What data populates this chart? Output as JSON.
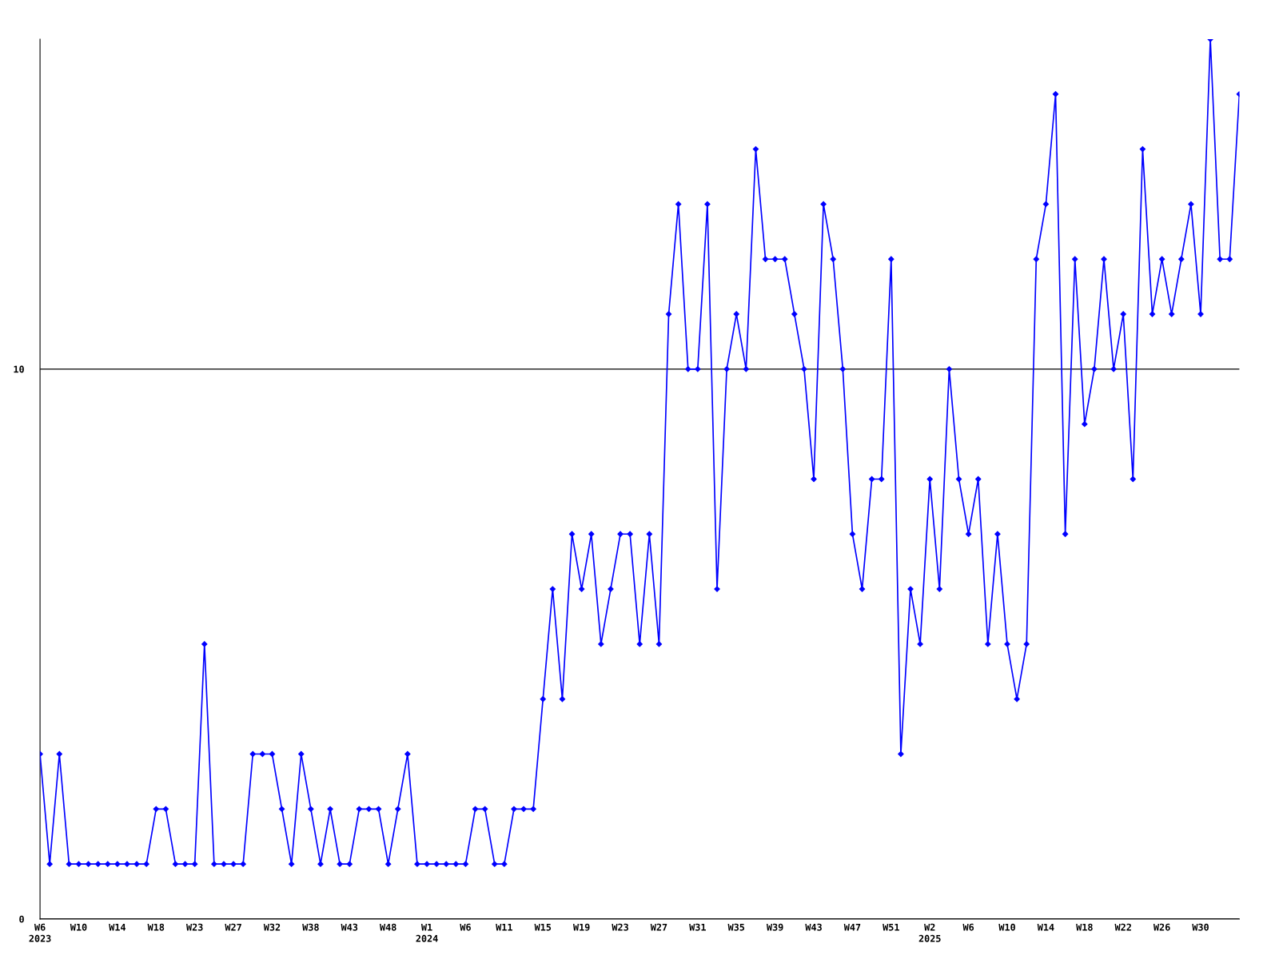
{
  "chart_data": {
    "type": "line",
    "categories": [
      "W6\n2023",
      null,
      null,
      null,
      "W10",
      null,
      null,
      null,
      "W14",
      null,
      null,
      null,
      "W18",
      null,
      null,
      null,
      "W23",
      null,
      null,
      null,
      "W27",
      null,
      null,
      null,
      "W32",
      null,
      null,
      null,
      "W38",
      null,
      null,
      null,
      "W43",
      null,
      null,
      null,
      "W48",
      null,
      null,
      null,
      "W1\n2024",
      null,
      null,
      null,
      "W6",
      null,
      null,
      null,
      "W11",
      null,
      null,
      null,
      "W15",
      null,
      null,
      null,
      "W19",
      null,
      null,
      null,
      "W23",
      null,
      null,
      null,
      "W27",
      null,
      null,
      null,
      "W31",
      null,
      null,
      null,
      "W35",
      null,
      null,
      null,
      "W39",
      null,
      null,
      null,
      "W43",
      null,
      null,
      null,
      "W47",
      null,
      null,
      null,
      "W51",
      null,
      null,
      null,
      "W2\n2025",
      null,
      null,
      null,
      "W6",
      null,
      null,
      null,
      "W10",
      null,
      null,
      null,
      "W14",
      null,
      null,
      null,
      "W18",
      null,
      null,
      null,
      "W22",
      null,
      null,
      null,
      "W26",
      null,
      null,
      null,
      "W30",
      null,
      null,
      null,
      null
    ],
    "series": [
      {
        "color": "#0000ff",
        "values": [
          3,
          1,
          3,
          1,
          1,
          1,
          1,
          1,
          1,
          1,
          1,
          1,
          2,
          2,
          1,
          1,
          1,
          5,
          1,
          1,
          1,
          1,
          3,
          3,
          3,
          2,
          1,
          3,
          2,
          1,
          2,
          1,
          1,
          2,
          2,
          2,
          1,
          2,
          3,
          1,
          1,
          1,
          1,
          1,
          1,
          2,
          2,
          1,
          1,
          2,
          2,
          2,
          4,
          6,
          4,
          7,
          6,
          7,
          5,
          6,
          7,
          7,
          5,
          7,
          5,
          11,
          13,
          10,
          10,
          13,
          6,
          10,
          11,
          10,
          14,
          12,
          12,
          12,
          11,
          10,
          8,
          13,
          12,
          10,
          7,
          6,
          8,
          8,
          12,
          3,
          6,
          5,
          8,
          6,
          10,
          8,
          7,
          8,
          5,
          7,
          5,
          4,
          5,
          12,
          13,
          15,
          7,
          12,
          9,
          10,
          12,
          10,
          11,
          8,
          14,
          11,
          12,
          11,
          12,
          13,
          11,
          16,
          12,
          12,
          15
        ]
      }
    ],
    "ylim": [
      0,
      16
    ],
    "yticks": [
      0,
      10
    ],
    "grid": "y",
    "marker": "diamond",
    "line_style": "solid",
    "legend": false
  }
}
